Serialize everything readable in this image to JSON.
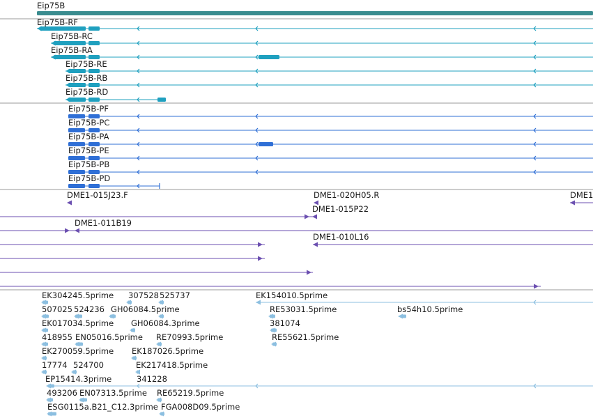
{
  "gene": {
    "label": "Eip75B",
    "color": "#3a8c8f"
  },
  "transcripts": {
    "color": "#1fa0bf",
    "items": [
      {
        "label": "Eip75B-RF"
      },
      {
        "label": "Eip75B-RC"
      },
      {
        "label": "Eip75B-RA"
      },
      {
        "label": "Eip75B-RE"
      },
      {
        "label": "Eip75B-RB"
      },
      {
        "label": "Eip75B-RD"
      }
    ]
  },
  "proteins": {
    "color": "#2f6fd6",
    "items": [
      {
        "label": "Eip75B-PF"
      },
      {
        "label": "Eip75B-PC"
      },
      {
        "label": "Eip75B-PA"
      },
      {
        "label": "Eip75B-PE"
      },
      {
        "label": "Eip75B-PB"
      },
      {
        "label": "Eip75B-PD"
      }
    ]
  },
  "bac_ends": {
    "color": "#6b4fb0",
    "items": [
      {
        "label": "DME1-015J23.F"
      },
      {
        "label": "DME1-020H05.R"
      },
      {
        "label": "DME1"
      },
      {
        "label": "DME1-015P22"
      },
      {
        "label": "DME1-011B19"
      },
      {
        "label": "DME1-010L16"
      }
    ]
  },
  "ests": {
    "color": "#8cbfe0",
    "items": [
      {
        "label": "EK304245.5prime"
      },
      {
        "label": "307528"
      },
      {
        "label": "525737"
      },
      {
        "label": "EK154010.5prime"
      },
      {
        "label": "507025"
      },
      {
        "label": "524236"
      },
      {
        "label": "GH06084.5prime"
      },
      {
        "label": "RE53031.5prime"
      },
      {
        "label": "bs54h10.5prime"
      },
      {
        "label": "EK017034.5prime"
      },
      {
        "label": "GH06084.3prime"
      },
      {
        "label": "381074"
      },
      {
        "label": "418955"
      },
      {
        "label": "EN05016.5prime"
      },
      {
        "label": "RE70993.5prime"
      },
      {
        "label": "RE55621.5prime"
      },
      {
        "label": "EK270059.5prime"
      },
      {
        "label": "EK187026.5prime"
      },
      {
        "label": "17774"
      },
      {
        "label": "524700"
      },
      {
        "label": "EK217418.5prime"
      },
      {
        "label": "EP15414.3prime"
      },
      {
        "label": "341228"
      },
      {
        "label": "493206"
      },
      {
        "label": "EN07313.5prime"
      },
      {
        "label": "RE65219.5prime"
      },
      {
        "label": "ESG0115a.B21_C12.3prime"
      },
      {
        "label": "FGA008D09.5prime"
      }
    ]
  },
  "separator_color": "#999999"
}
